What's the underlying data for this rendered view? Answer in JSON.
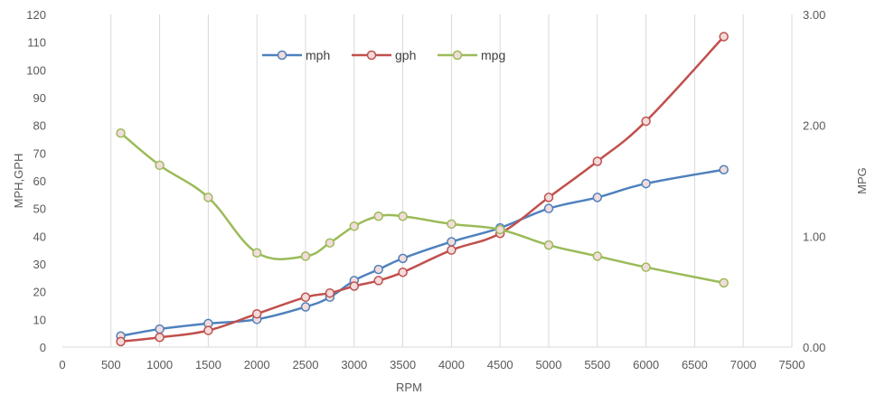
{
  "chart_data": {
    "type": "line",
    "xlabel": "RPM",
    "ylabel": "MPH,GPH",
    "y2label": "MPG",
    "xlim": [
      0,
      7500
    ],
    "ylim": [
      0,
      120
    ],
    "y2lim": [
      0,
      3
    ],
    "xticks": [
      "0",
      "500",
      "1000",
      "1500",
      "2000",
      "2500",
      "3000",
      "3500",
      "4000",
      "4500",
      "5000",
      "5500",
      "6000",
      "6500",
      "7000",
      "7500"
    ],
    "yticks": [
      "0",
      "10",
      "20",
      "30",
      "40",
      "50",
      "60",
      "70",
      "80",
      "90",
      "100",
      "110",
      "120"
    ],
    "y2ticks": [
      "0.00",
      "1.00",
      "2.00",
      "3.00"
    ],
    "grid": "vertical",
    "legend_position": "top-center",
    "series": [
      {
        "name": "mph",
        "axis": "left",
        "color": "#4f81bd",
        "points": [
          [
            600,
            4
          ],
          [
            1000,
            6.5
          ],
          [
            1500,
            8.5
          ],
          [
            2000,
            10
          ],
          [
            2500,
            14.5
          ],
          [
            2750,
            18
          ],
          [
            3000,
            24
          ],
          [
            3250,
            28
          ],
          [
            3500,
            32
          ],
          [
            4000,
            38
          ],
          [
            4500,
            43
          ],
          [
            5000,
            50
          ],
          [
            5500,
            54
          ],
          [
            6000,
            59
          ],
          [
            6800,
            64
          ]
        ]
      },
      {
        "name": "gph",
        "axis": "left",
        "color": "#c0504d",
        "points": [
          [
            600,
            2
          ],
          [
            1000,
            3.5
          ],
          [
            1500,
            6
          ],
          [
            2000,
            12
          ],
          [
            2500,
            18
          ],
          [
            2750,
            19.5
          ],
          [
            3000,
            22
          ],
          [
            3250,
            24
          ],
          [
            3500,
            27
          ],
          [
            4000,
            35
          ],
          [
            4500,
            41
          ],
          [
            5000,
            54
          ],
          [
            5500,
            67
          ],
          [
            6000,
            81.5
          ],
          [
            6800,
            112
          ]
        ]
      },
      {
        "name": "mpg",
        "axis": "right",
        "color": "#9bbb59",
        "points": [
          [
            600,
            1.93
          ],
          [
            1000,
            1.64
          ],
          [
            1500,
            1.35
          ],
          [
            2000,
            0.85
          ],
          [
            2500,
            0.82
          ],
          [
            2750,
            0.94
          ],
          [
            3000,
            1.09
          ],
          [
            3250,
            1.18
          ],
          [
            3500,
            1.18
          ],
          [
            4000,
            1.11
          ],
          [
            4500,
            1.06
          ],
          [
            5000,
            0.92
          ],
          [
            5500,
            0.82
          ],
          [
            6000,
            0.72
          ],
          [
            6800,
            0.58
          ]
        ]
      }
    ]
  }
}
